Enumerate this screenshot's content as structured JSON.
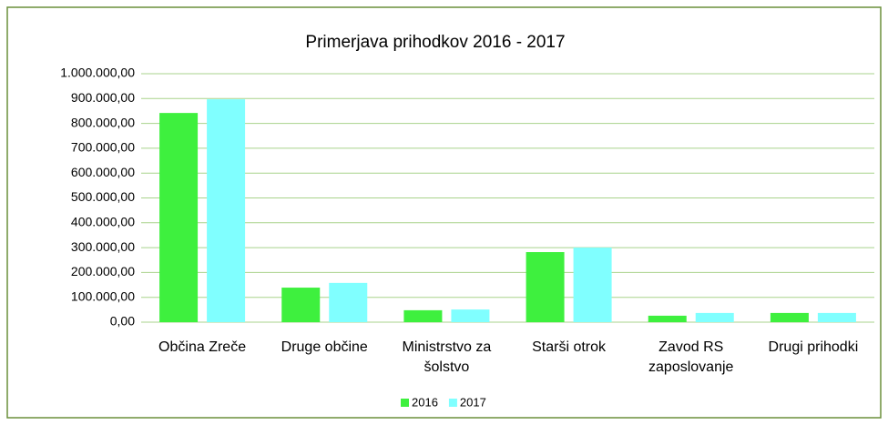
{
  "chart_data": {
    "type": "bar",
    "title": "Primerjava prihodkov 2016 - 2017",
    "categories": [
      "Občina Zreče",
      "Druge občine",
      "Ministrstvo za šolstvo",
      "Starši otrok",
      "Zavod RS zaposlovanje",
      "Drugi prihodki"
    ],
    "series": [
      {
        "name": "2016",
        "color": "#3ef03e",
        "values": [
          842000,
          139000,
          48000,
          282000,
          26000,
          37000
        ]
      },
      {
        "name": "2017",
        "color": "#80ffff",
        "values": [
          897000,
          158000,
          51000,
          300000,
          37000,
          37000
        ]
      }
    ],
    "ylim": [
      0,
      1000000
    ],
    "yticks": [
      {
        "value": 0,
        "label": "0,00"
      },
      {
        "value": 100000,
        "label": "100.000,00"
      },
      {
        "value": 200000,
        "label": "200.000,00"
      },
      {
        "value": 300000,
        "label": "300.000,00"
      },
      {
        "value": 400000,
        "label": "400.000,00"
      },
      {
        "value": 500000,
        "label": "500.000,00"
      },
      {
        "value": 600000,
        "label": "600.000,00"
      },
      {
        "value": 700000,
        "label": "700.000,00"
      },
      {
        "value": 800000,
        "label": "800.000,00"
      },
      {
        "value": 900000,
        "label": "900.000,00"
      },
      {
        "value": 1000000,
        "label": "1.000.000,00"
      }
    ],
    "grid": true,
    "legend": "bottom"
  }
}
